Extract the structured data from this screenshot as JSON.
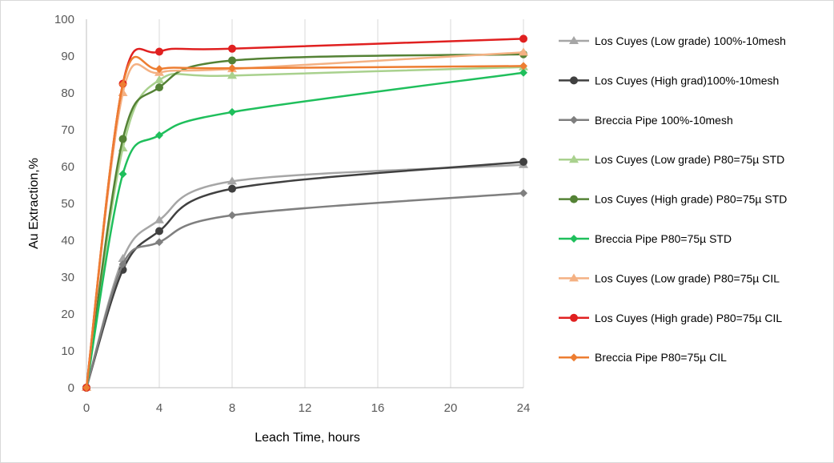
{
  "chart_data": {
    "type": "line",
    "title": "",
    "xlabel": "Leach Time, hours",
    "ylabel": "Au Extraction,%",
    "xlim": [
      0,
      24
    ],
    "ylim": [
      0,
      100
    ],
    "x_ticks": [
      0,
      4,
      8,
      12,
      16,
      20,
      24
    ],
    "y_ticks": [
      0,
      10,
      20,
      30,
      40,
      50,
      60,
      70,
      80,
      90,
      100
    ],
    "grid": "vertical gridlines",
    "legend_position": "right",
    "smooth": true,
    "series": [
      {
        "name": "Los Cuyes (Low grade) 100%-10mesh",
        "color": "#a6a6a6",
        "marker": "triangle",
        "x": [
          0,
          2,
          4,
          8,
          24
        ],
        "y": [
          0,
          35,
          45.5,
          56,
          60.5
        ]
      },
      {
        "name": "Los Cuyes (High grad)100%-10mesh",
        "color": "#404040",
        "marker": "circle",
        "x": [
          0,
          2,
          4,
          8,
          24
        ],
        "y": [
          0,
          32,
          42.5,
          54,
          61.3
        ]
      },
      {
        "name": "Breccia Pipe 100%-10mesh",
        "color": "#7f7f7f",
        "marker": "diamond",
        "x": [
          0,
          2,
          4,
          8,
          24
        ],
        "y": [
          0,
          33.5,
          39.5,
          46.8,
          52.8
        ]
      },
      {
        "name": "Los Cuyes (Low grade) P80=75µ STD",
        "color": "#a9d18e",
        "marker": "triangle",
        "x": [
          0,
          2,
          4,
          8,
          24
        ],
        "y": [
          0,
          65,
          83.5,
          84.7,
          87
        ]
      },
      {
        "name": "Los Cuyes (High grade) P80=75µ STD",
        "color": "#548235",
        "marker": "circle",
        "x": [
          0,
          2,
          4,
          8,
          24
        ],
        "y": [
          0,
          67.5,
          81.5,
          88.8,
          90.5
        ]
      },
      {
        "name": "Breccia Pipe P80=75µ STD",
        "color": "#1fbf5c",
        "marker": "diamond",
        "x": [
          0,
          2,
          4,
          8,
          24
        ],
        "y": [
          0,
          58,
          68.5,
          74.8,
          85.5
        ]
      },
      {
        "name": "Los Cuyes (Low grade) P80=75µ CIL",
        "color": "#f4b183",
        "marker": "triangle",
        "x": [
          0,
          2,
          4,
          8,
          24
        ],
        "y": [
          0,
          80,
          85.5,
          86.5,
          91
        ]
      },
      {
        "name": "Los Cuyes (High grade) P80=75µ CIL",
        "color": "#e02020",
        "marker": "circle",
        "x": [
          0,
          2,
          4,
          8,
          24
        ],
        "y": [
          0,
          82.5,
          91.2,
          92,
          94.7
        ]
      },
      {
        "name": "Breccia Pipe P80=75µ CIL",
        "color": "#ed7d31",
        "marker": "diamond",
        "x": [
          0,
          2,
          4,
          8,
          24
        ],
        "y": [
          0,
          82.3,
          86.5,
          86.7,
          87.3
        ]
      }
    ]
  }
}
